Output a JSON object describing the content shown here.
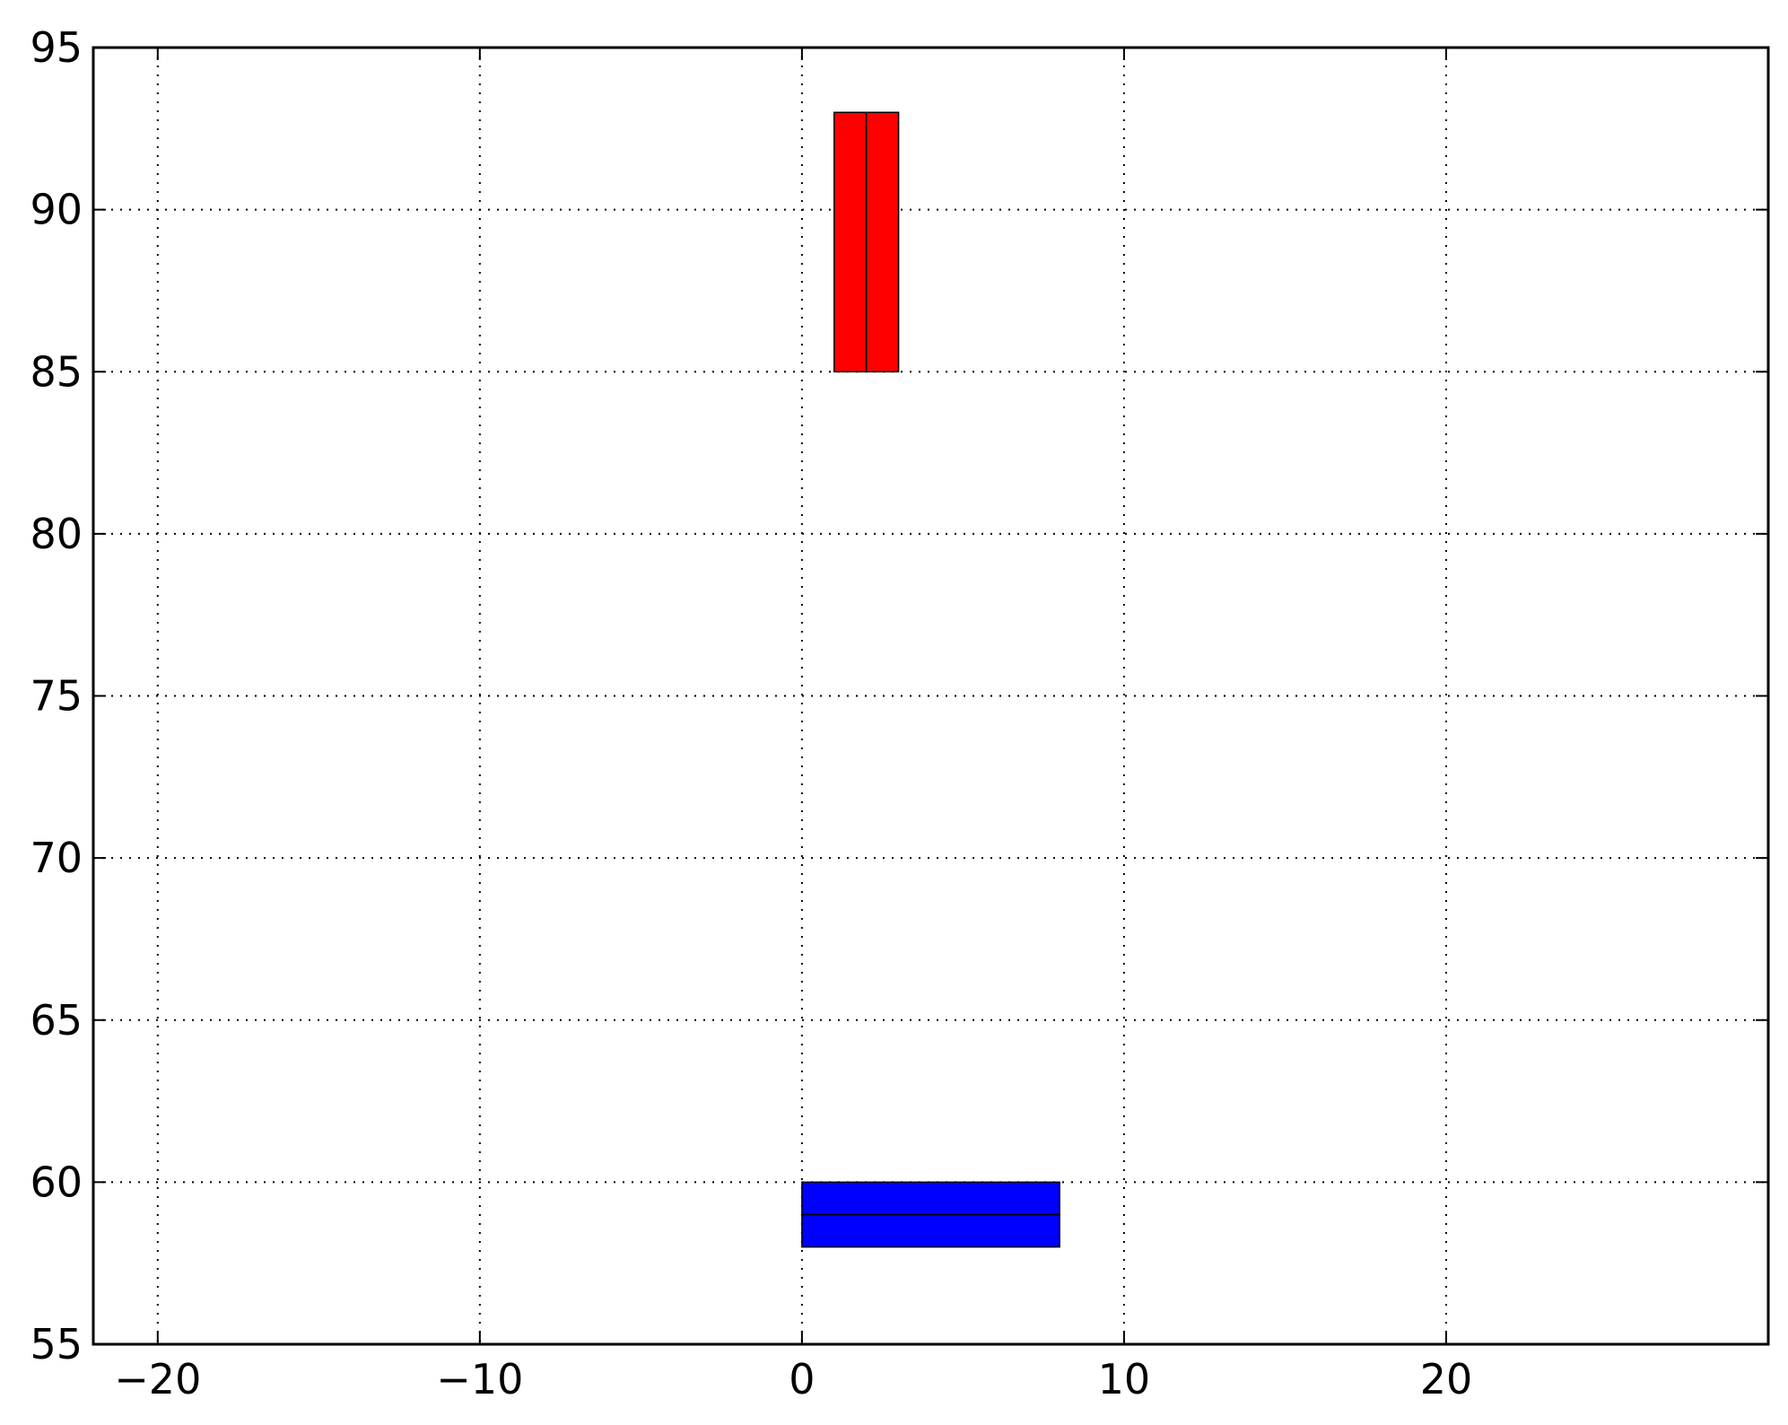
{
  "chart_data": {
    "type": "bar",
    "orientation": "mixed",
    "title": "",
    "xlabel": "",
    "ylabel": "",
    "xlim": [
      -22,
      30
    ],
    "ylim": [
      55,
      95
    ],
    "grid": true,
    "x_ticks": [
      {
        "value": -20,
        "label": "−20"
      },
      {
        "value": -10,
        "label": "−10"
      },
      {
        "value": 0,
        "label": "0"
      },
      {
        "value": 10,
        "label": "10"
      },
      {
        "value": 20,
        "label": "20"
      }
    ],
    "y_ticks": [
      {
        "value": 55,
        "label": "55"
      },
      {
        "value": 60,
        "label": "60"
      },
      {
        "value": 65,
        "label": "65"
      },
      {
        "value": 70,
        "label": "70"
      },
      {
        "value": 75,
        "label": "75"
      },
      {
        "value": 80,
        "label": "80"
      },
      {
        "value": 85,
        "label": "85"
      },
      {
        "value": 90,
        "label": "90"
      },
      {
        "value": 95,
        "label": "95"
      }
    ],
    "series": [
      {
        "color": "#ff0000",
        "bars": [
          {
            "x0": 1,
            "x1": 2,
            "y0": 85,
            "y1": 93
          },
          {
            "x0": 2,
            "x1": 3,
            "y0": 85,
            "y1": 93
          }
        ]
      },
      {
        "color": "#0000ff",
        "bars": [
          {
            "x0": 0,
            "x1": 8,
            "y0": 58,
            "y1": 59
          },
          {
            "x0": 0,
            "x1": 8,
            "y0": 59,
            "y1": 60
          }
        ]
      }
    ]
  }
}
